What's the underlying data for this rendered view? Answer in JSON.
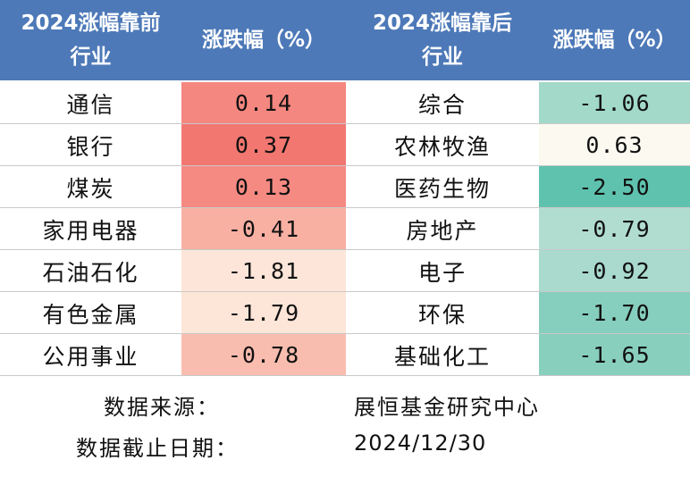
{
  "header": {
    "left_industry_line1": "2024涨幅靠前",
    "left_industry_line2": "行业",
    "left_change": "涨跌幅（%）",
    "right_industry_line1": "2024涨幅靠后",
    "right_industry_line2": "行业",
    "right_change": "涨跌幅（%）"
  },
  "rows": [
    {
      "top_name": "通信",
      "top_value": "0.14",
      "top_color": "#f4877f",
      "bottom_name": "综合",
      "bottom_value": "-1.06",
      "bottom_color": "#a2d9c9"
    },
    {
      "top_name": "银行",
      "top_value": "0.37",
      "top_color": "#f27770",
      "bottom_name": "农林牧渔",
      "bottom_value": "0.63",
      "bottom_color": "#fcfaf0"
    },
    {
      "top_name": "煤炭",
      "top_value": "0.13",
      "top_color": "#f58a82",
      "bottom_name": "医药生物",
      "bottom_value": "-2.50",
      "bottom_color": "#5fc2ae"
    },
    {
      "top_name": "家用电器",
      "top_value": "-0.41",
      "top_color": "#f8b0a3",
      "bottom_name": "房地产",
      "bottom_value": "-0.79",
      "bottom_color": "#b1ddd0"
    },
    {
      "top_name": "石油石化",
      "top_value": "-1.81",
      "top_color": "#fde6d9",
      "bottom_name": "电子",
      "bottom_value": "-0.92",
      "bottom_color": "#a9dacd"
    },
    {
      "top_name": "有色金属",
      "top_value": "-1.79",
      "top_color": "#fde5d8",
      "bottom_name": "环保",
      "bottom_value": "-1.70",
      "bottom_color": "#86cebd"
    },
    {
      "top_name": "公用事业",
      "top_value": "-0.78",
      "top_color": "#f9bdaf",
      "bottom_name": "基础化工",
      "bottom_value": "-1.65",
      "bottom_color": "#88cfbe"
    }
  ],
  "footer": {
    "source_label": "数据来源：",
    "source_value": "展恒基金研究中心",
    "date_label": "数据截止日期：",
    "date_value": "2024/12/30"
  },
  "chart_data": {
    "type": "table",
    "columns": [
      "2024涨幅靠前行业",
      "涨跌幅（%）",
      "2024涨幅靠后行业",
      "涨跌幅（%）"
    ],
    "top_industries": [
      "通信",
      "银行",
      "煤炭",
      "家用电器",
      "石油石化",
      "有色金属",
      "公用事业"
    ],
    "top_changes": [
      0.14,
      0.37,
      0.13,
      -0.41,
      -1.81,
      -1.79,
      -0.78
    ],
    "bottom_industries": [
      "综合",
      "农林牧渔",
      "医药生物",
      "房地产",
      "电子",
      "环保",
      "基础化工"
    ],
    "bottom_changes": [
      -1.06,
      0.63,
      -2.5,
      -0.79,
      -0.92,
      -1.7,
      -1.65
    ]
  },
  "colors": {
    "header_bg": "#4d79b8",
    "header_text": "#ffffff"
  }
}
